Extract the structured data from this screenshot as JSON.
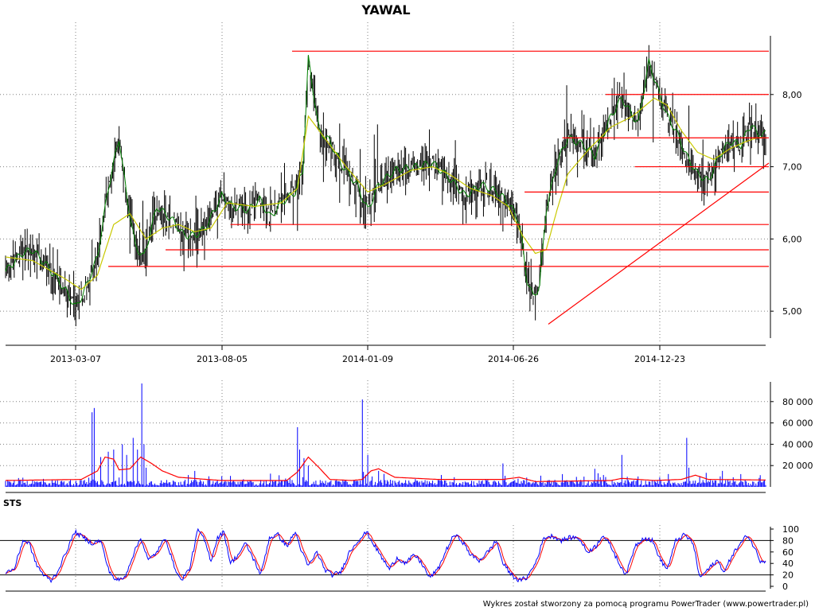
{
  "chart_data": [
    {
      "panel": "price",
      "type": "candlestick",
      "title": "YAWAL",
      "x_tick_labels": [
        "2013-03-07",
        "2013-08-05",
        "2014-01-09",
        "2014-06-26",
        "2014-12-23"
      ],
      "y_ticks": [
        5,
        6,
        7,
        8
      ],
      "y_tick_labels": [
        "5,00",
        "6,00",
        "7,00",
        "8,00"
      ],
      "ylim": [
        4.55,
        9.0
      ],
      "grid": true,
      "price_path": [
        [
          0,
          5.55
        ],
        [
          15,
          5.8
        ],
        [
          25,
          5.85
        ],
        [
          40,
          5.6
        ],
        [
          55,
          5.3
        ],
        [
          65,
          5.05
        ],
        [
          72,
          5.25
        ],
        [
          85,
          5.75
        ],
        [
          95,
          6.7
        ],
        [
          105,
          7.4
        ],
        [
          112,
          6.6
        ],
        [
          120,
          5.9
        ],
        [
          128,
          5.75
        ],
        [
          140,
          6.45
        ],
        [
          155,
          6.25
        ],
        [
          165,
          6.05
        ],
        [
          175,
          6.05
        ],
        [
          185,
          6.15
        ],
        [
          200,
          6.6
        ],
        [
          210,
          6.45
        ],
        [
          225,
          6.4
        ],
        [
          235,
          6.55
        ],
        [
          245,
          6.3
        ],
        [
          255,
          6.5
        ],
        [
          268,
          6.65
        ],
        [
          275,
          6.95
        ],
        [
          280,
          8.5
        ],
        [
          290,
          7.5
        ],
        [
          300,
          7.35
        ],
        [
          310,
          7.05
        ],
        [
          325,
          6.75
        ],
        [
          335,
          6.4
        ],
        [
          345,
          6.75
        ],
        [
          360,
          6.95
        ],
        [
          380,
          7.0
        ],
        [
          395,
          7.05
        ],
        [
          410,
          6.85
        ],
        [
          425,
          6.6
        ],
        [
          440,
          6.75
        ],
        [
          455,
          6.65
        ],
        [
          465,
          6.5
        ],
        [
          475,
          6.25
        ],
        [
          482,
          5.45
        ],
        [
          488,
          5.2
        ],
        [
          494,
          5.35
        ],
        [
          500,
          6.4
        ],
        [
          510,
          7.05
        ],
        [
          520,
          7.4
        ],
        [
          535,
          7.3
        ],
        [
          545,
          7.15
        ],
        [
          560,
          7.7
        ],
        [
          570,
          7.95
        ],
        [
          578,
          7.75
        ],
        [
          585,
          7.6
        ],
        [
          595,
          8.45
        ],
        [
          605,
          8.0
        ],
        [
          612,
          7.7
        ],
        [
          620,
          7.5
        ],
        [
          630,
          7.15
        ],
        [
          640,
          6.9
        ],
        [
          650,
          6.8
        ],
        [
          660,
          7.15
        ],
        [
          670,
          7.35
        ],
        [
          680,
          7.3
        ],
        [
          690,
          7.6
        ],
        [
          695,
          7.45
        ]
      ],
      "sma_path": [
        [
          0,
          5.75
        ],
        [
          25,
          5.7
        ],
        [
          55,
          5.45
        ],
        [
          70,
          5.3
        ],
        [
          85,
          5.5
        ],
        [
          100,
          6.2
        ],
        [
          115,
          6.35
        ],
        [
          130,
          6.0
        ],
        [
          145,
          6.15
        ],
        [
          160,
          6.2
        ],
        [
          175,
          6.1
        ],
        [
          190,
          6.15
        ],
        [
          205,
          6.5
        ],
        [
          230,
          6.45
        ],
        [
          255,
          6.5
        ],
        [
          270,
          6.7
        ],
        [
          280,
          7.7
        ],
        [
          295,
          7.4
        ],
        [
          315,
          7.0
        ],
        [
          335,
          6.65
        ],
        [
          350,
          6.75
        ],
        [
          375,
          6.95
        ],
        [
          395,
          7.0
        ],
        [
          410,
          6.9
        ],
        [
          430,
          6.7
        ],
        [
          450,
          6.6
        ],
        [
          465,
          6.45
        ],
        [
          478,
          6.05
        ],
        [
          490,
          5.8
        ],
        [
          500,
          5.85
        ],
        [
          510,
          6.4
        ],
        [
          520,
          6.9
        ],
        [
          540,
          7.25
        ],
        [
          560,
          7.55
        ],
        [
          580,
          7.7
        ],
        [
          600,
          7.95
        ],
        [
          612,
          7.85
        ],
        [
          625,
          7.5
        ],
        [
          640,
          7.2
        ],
        [
          655,
          7.1
        ],
        [
          670,
          7.25
        ],
        [
          685,
          7.35
        ],
        [
          695,
          7.4
        ]
      ],
      "horizontal_lines": [
        {
          "y": 8.6,
          "from": 265,
          "to": 703
        },
        {
          "y": 8.0,
          "from": 555,
          "to": 703
        },
        {
          "y": 7.4,
          "from": 515,
          "to": 703
        },
        {
          "y": 7.0,
          "from": 582,
          "to": 703
        },
        {
          "y": 6.65,
          "from": 480,
          "to": 703
        },
        {
          "y": 6.2,
          "from": 208,
          "to": 703
        },
        {
          "y": 5.85,
          "from": 148,
          "to": 703
        },
        {
          "y": 5.62,
          "from": 95,
          "to": 703
        }
      ],
      "trend_line": {
        "from": [
          502,
          4.82
        ],
        "to": [
          703,
          7.05
        ]
      },
      "colors": {
        "candle": "#000000",
        "price": "#008000",
        "sma": "#c8c800",
        "levels": "#ff0000"
      }
    },
    {
      "panel": "volume",
      "type": "bar",
      "y_ticks": [
        20000,
        40000,
        60000,
        80000
      ],
      "y_tick_labels": [
        "20 000",
        "40 000",
        "60 000",
        "80 000"
      ],
      "ylim": [
        0,
        100000
      ],
      "grid": true,
      "spikes": [
        [
          80,
          70000
        ],
        [
          82,
          74000
        ],
        [
          88,
          28000
        ],
        [
          95,
          33000
        ],
        [
          100,
          35000
        ],
        [
          108,
          40000
        ],
        [
          112,
          30000
        ],
        [
          118,
          46000
        ],
        [
          122,
          35000
        ],
        [
          126,
          97000
        ],
        [
          128,
          40000
        ],
        [
          130,
          18000
        ],
        [
          175,
          15000
        ],
        [
          200,
          10000
        ],
        [
          270,
          56000
        ],
        [
          272,
          35000
        ],
        [
          276,
          27000
        ],
        [
          280,
          20000
        ],
        [
          330,
          82000
        ],
        [
          335,
          30000
        ],
        [
          345,
          15000
        ],
        [
          460,
          22000
        ],
        [
          515,
          12000
        ],
        [
          545,
          17000
        ],
        [
          570,
          30000
        ],
        [
          630,
          46000
        ],
        [
          632,
          18000
        ],
        [
          680,
          12000
        ],
        [
          698,
          11000
        ]
      ],
      "baseline_volume": 3500,
      "ma_path": [
        [
          0,
          6000
        ],
        [
          70,
          7000
        ],
        [
          85,
          15000
        ],
        [
          92,
          28000
        ],
        [
          100,
          26000
        ],
        [
          105,
          16000
        ],
        [
          115,
          17000
        ],
        [
          125,
          28000
        ],
        [
          135,
          22000
        ],
        [
          145,
          15000
        ],
        [
          160,
          9000
        ],
        [
          200,
          6000
        ],
        [
          260,
          6000
        ],
        [
          270,
          14000
        ],
        [
          280,
          28000
        ],
        [
          290,
          18000
        ],
        [
          300,
          7000
        ],
        [
          320,
          6000
        ],
        [
          330,
          7000
        ],
        [
          338,
          15000
        ],
        [
          345,
          17000
        ],
        [
          360,
          9000
        ],
        [
          400,
          7000
        ],
        [
          460,
          7000
        ],
        [
          475,
          9000
        ],
        [
          490,
          5000
        ],
        [
          560,
          6000
        ],
        [
          570,
          8000
        ],
        [
          600,
          6000
        ],
        [
          625,
          7000
        ],
        [
          638,
          11000
        ],
        [
          650,
          7000
        ],
        [
          700,
          6500
        ]
      ],
      "colors": {
        "bars": "#0000ff",
        "ma": "#ff0000"
      }
    },
    {
      "panel": "stochastic",
      "type": "line",
      "label": "STS",
      "y_ticks": [
        0,
        20,
        40,
        60,
        80,
        100
      ],
      "y_tick_labels": [
        "0",
        "20",
        "40",
        "60",
        "80",
        "100"
      ],
      "ylim": [
        0,
        100
      ],
      "reference_lines": [
        20,
        80
      ],
      "k_path": [
        [
          0,
          25
        ],
        [
          8,
          30
        ],
        [
          16,
          80
        ],
        [
          22,
          75
        ],
        [
          28,
          40
        ],
        [
          35,
          20
        ],
        [
          42,
          10
        ],
        [
          48,
          25
        ],
        [
          56,
          60
        ],
        [
          64,
          95
        ],
        [
          72,
          85
        ],
        [
          80,
          75
        ],
        [
          88,
          80
        ],
        [
          95,
          30
        ],
        [
          102,
          10
        ],
        [
          110,
          15
        ],
        [
          118,
          55
        ],
        [
          125,
          85
        ],
        [
          132,
          45
        ],
        [
          140,
          60
        ],
        [
          148,
          85
        ],
        [
          155,
          40
        ],
        [
          162,
          10
        ],
        [
          170,
          30
        ],
        [
          178,
          100
        ],
        [
          184,
          80
        ],
        [
          190,
          45
        ],
        [
          196,
          85
        ],
        [
          202,
          95
        ],
        [
          208,
          40
        ],
        [
          215,
          55
        ],
        [
          222,
          75
        ],
        [
          230,
          45
        ],
        [
          236,
          20
        ],
        [
          244,
          85
        ],
        [
          252,
          90
        ],
        [
          260,
          70
        ],
        [
          268,
          95
        ],
        [
          274,
          60
        ],
        [
          280,
          35
        ],
        [
          288,
          60
        ],
        [
          295,
          30
        ],
        [
          302,
          20
        ],
        [
          310,
          25
        ],
        [
          318,
          60
        ],
        [
          326,
          80
        ],
        [
          334,
          95
        ],
        [
          340,
          75
        ],
        [
          348,
          50
        ],
        [
          355,
          30
        ],
        [
          362,
          50
        ],
        [
          370,
          40
        ],
        [
          378,
          55
        ],
        [
          385,
          40
        ],
        [
          392,
          15
        ],
        [
          400,
          30
        ],
        [
          408,
          65
        ],
        [
          415,
          90
        ],
        [
          422,
          80
        ],
        [
          430,
          55
        ],
        [
          438,
          45
        ],
        [
          446,
          60
        ],
        [
          454,
          80
        ],
        [
          460,
          40
        ],
        [
          468,
          20
        ],
        [
          475,
          10
        ],
        [
          482,
          15
        ],
        [
          490,
          40
        ],
        [
          498,
          85
        ],
        [
          506,
          88
        ],
        [
          514,
          80
        ],
        [
          522,
          85
        ],
        [
          530,
          85
        ],
        [
          538,
          60
        ],
        [
          546,
          70
        ],
        [
          552,
          90
        ],
        [
          560,
          70
        ],
        [
          566,
          45
        ],
        [
          574,
          20
        ],
        [
          582,
          70
        ],
        [
          590,
          85
        ],
        [
          598,
          80
        ],
        [
          606,
          45
        ],
        [
          612,
          30
        ],
        [
          620,
          80
        ],
        [
          628,
          90
        ],
        [
          636,
          75
        ],
        [
          642,
          15
        ],
        [
          650,
          30
        ],
        [
          658,
          45
        ],
        [
          665,
          25
        ],
        [
          672,
          55
        ],
        [
          678,
          70
        ],
        [
          686,
          90
        ],
        [
          692,
          70
        ],
        [
          698,
          45
        ]
      ],
      "colors": {
        "k": "#0000ff",
        "d": "#ff0000"
      }
    }
  ],
  "footer": {
    "credit": "Wykres został stworzony za pomocą programu PowerTrader (www.powertrader.pl)"
  }
}
